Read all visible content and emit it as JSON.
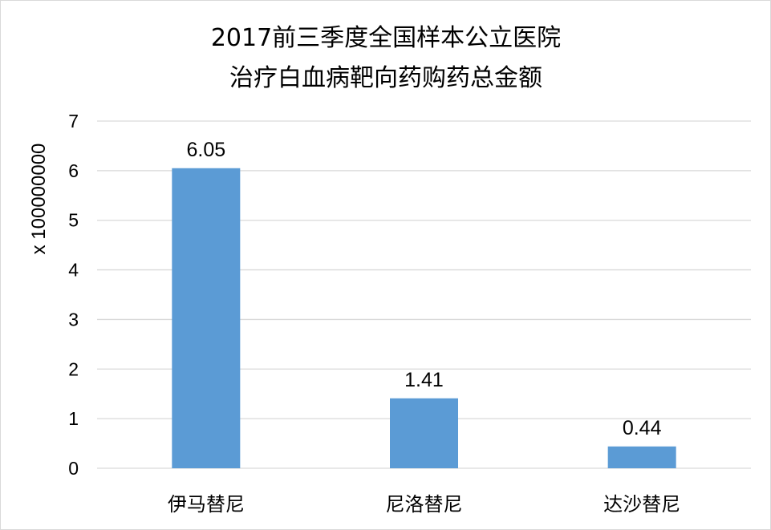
{
  "chart_data": {
    "type": "bar",
    "title_lines": [
      "2017前三季度全国样本公立医院",
      "治疗白血病靶向药购药总金额"
    ],
    "ylabel": "x 100000000",
    "xlabel": "",
    "categories": [
      "伊马替尼",
      "尼洛替尼",
      "达沙替尼"
    ],
    "values": [
      6.05,
      1.41,
      0.44
    ],
    "data_labels": [
      "6.05",
      "1.41",
      "0.44"
    ],
    "ylim": [
      0,
      7
    ],
    "yticks": [
      0,
      1,
      2,
      3,
      4,
      5,
      6,
      7
    ],
    "grid": true,
    "legend": "none",
    "bar_color": "#5b9bd5"
  }
}
